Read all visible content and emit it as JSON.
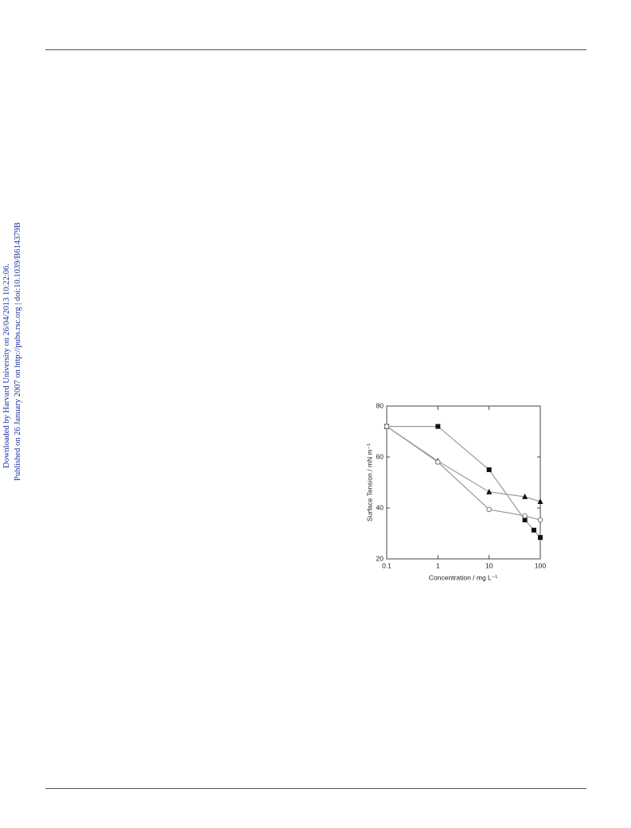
{
  "sidebar": {
    "downloaded": "Downloaded by Harvard University on 26/04/2013 10:22:06.",
    "published": "Published on 26 January 2007 on http://pubs.rsc.org | doi:10.1039/B614379B"
  },
  "chart_data": {
    "type": "line",
    "log_x": true,
    "xlabel": "Concentration / mg L⁻¹",
    "ylabel": "Surface Tension / mN m⁻¹",
    "xlim": [
      0.1,
      100
    ],
    "xticks": [
      0.1,
      1,
      10,
      100
    ],
    "ylim": [
      20,
      80
    ],
    "yticks": [
      20,
      40,
      60,
      80
    ],
    "grid": false,
    "series": [
      {
        "marker": "square",
        "color": "#111111",
        "line_color": "#9a9a9a",
        "x": [
          0.1,
          1,
          10,
          50,
          75,
          100
        ],
        "values": [
          72,
          72,
          55,
          35.3,
          31.3,
          28.4
        ]
      },
      {
        "marker": "triangle",
        "color": "#111111",
        "line_color": "#9a9a9a",
        "x": [
          0.1,
          1,
          10,
          50,
          100
        ],
        "values": [
          72,
          58.4,
          46.3,
          44.4,
          42.5
        ]
      },
      {
        "marker": "circle-open",
        "color": "#777777",
        "line_color": "#9a9a9a",
        "x": [
          0.1,
          1,
          10,
          50,
          100
        ],
        "values": [
          72,
          58,
          39.4,
          36.9,
          35.3
        ]
      }
    ]
  }
}
